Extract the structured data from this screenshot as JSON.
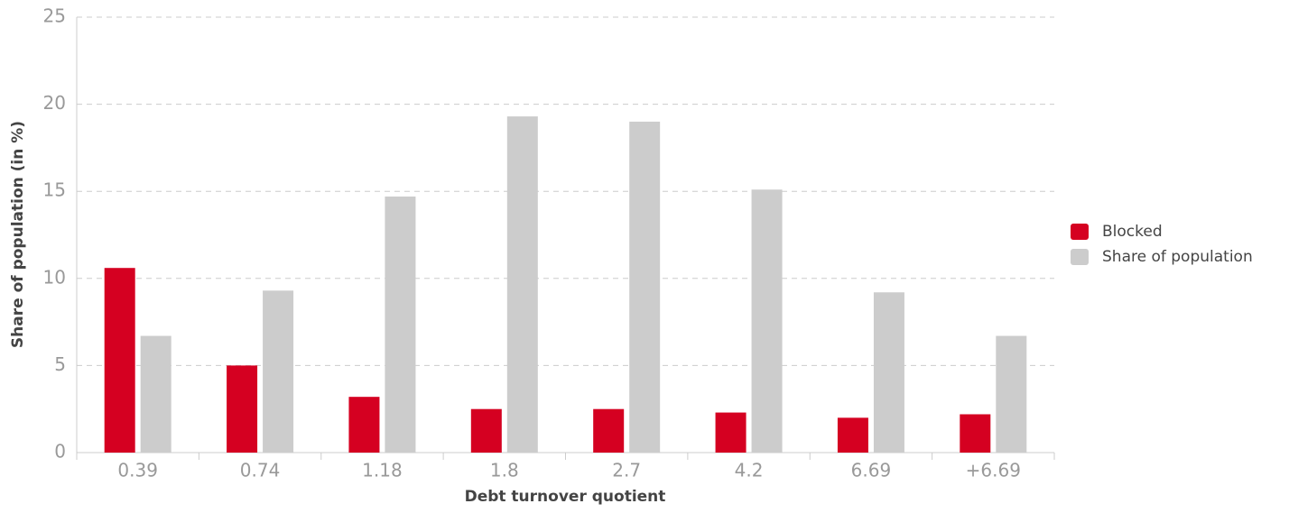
{
  "chart_data": {
    "type": "bar",
    "x_label": "Debt turnover quotient",
    "y_label": "Share of population (in %)",
    "categories": [
      "0.39",
      "0.74",
      "1.18",
      "1.8",
      "2.7",
      "4.2",
      "6.69",
      "+6.69"
    ],
    "series": [
      {
        "name": "Blocked",
        "color": "#d50021",
        "values": [
          10.6,
          5.0,
          3.2,
          2.5,
          2.5,
          2.3,
          2.0,
          2.2
        ]
      },
      {
        "name": "Share of population",
        "color": "#cccccc",
        "values": [
          6.7,
          9.3,
          14.7,
          19.3,
          19.0,
          15.1,
          9.2,
          6.7
        ]
      }
    ],
    "ylim": [
      0,
      25
    ],
    "yticks": [
      0,
      5,
      10,
      15,
      20,
      25
    ],
    "grid": true,
    "legend": "right"
  }
}
